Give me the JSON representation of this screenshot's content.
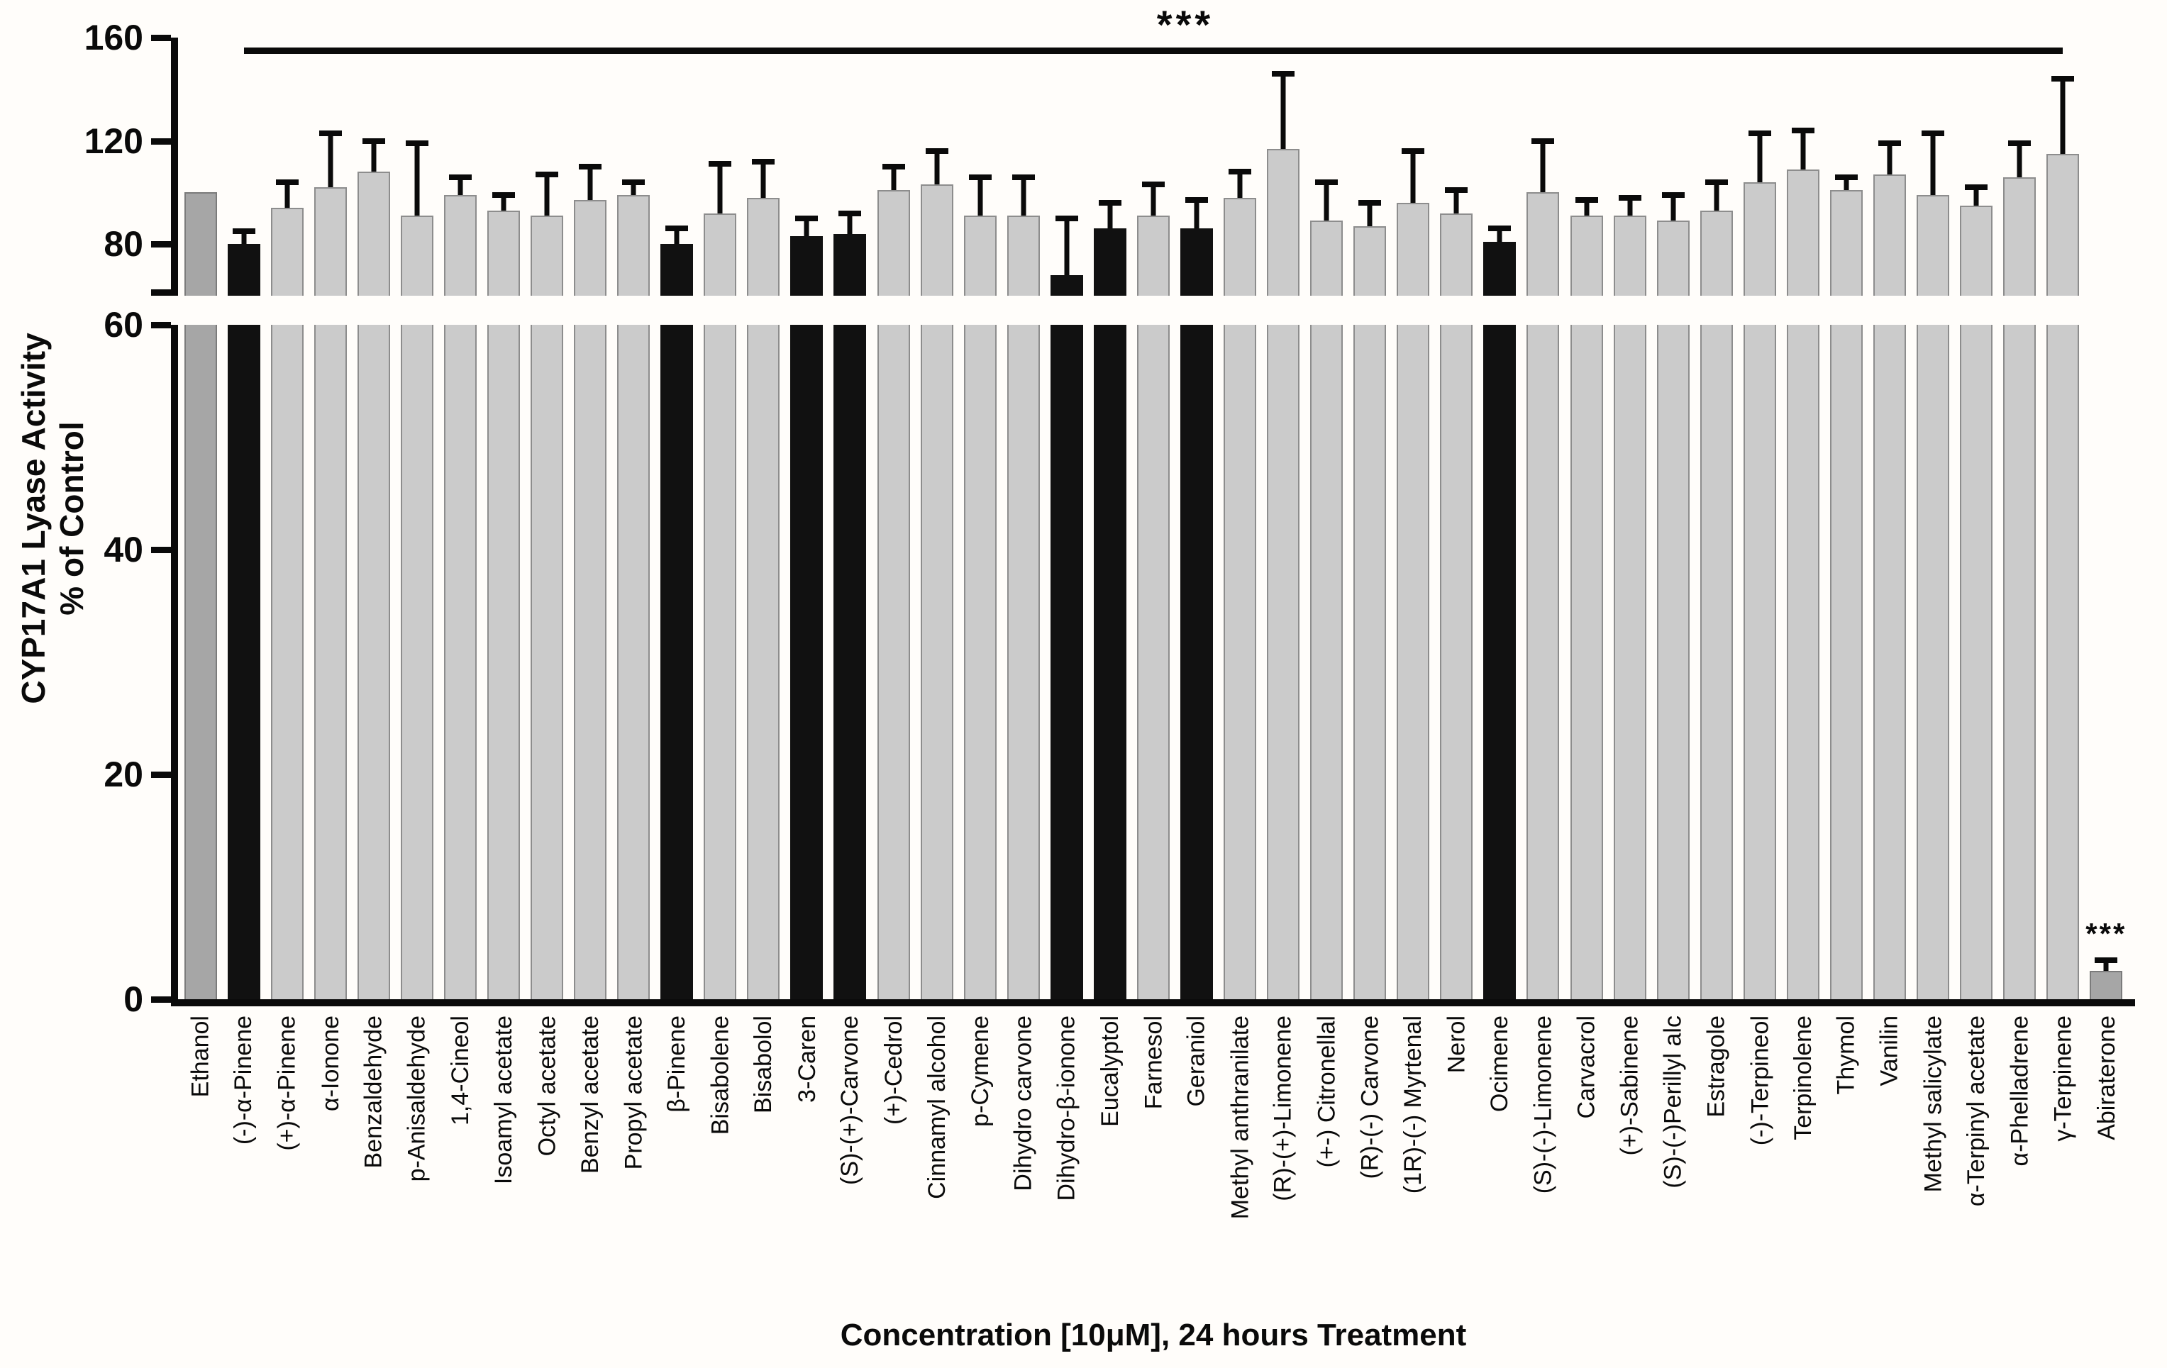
{
  "figure": {
    "y_axis_title_line1": "CYP17A1 Lyase Activity",
    "y_axis_title_line2": "% of Control",
    "x_axis_title": "Concentration [10μM], 24 hours Treatment",
    "significance_overall": "***"
  },
  "chart_data": {
    "type": "bar",
    "title": "",
    "xlabel": "Concentration [10μM], 24 hours Treatment",
    "ylabel": "CYP17A1 Lyase Activity % of Control",
    "grid": false,
    "legend": false,
    "y_axis": {
      "broken": true,
      "top_range": [
        60,
        160
      ],
      "bottom_range": [
        0,
        60
      ],
      "top_ticks": [
        160,
        120,
        80
      ],
      "bottom_ticks": [
        60,
        40,
        20,
        0
      ]
    },
    "colors": {
      "control_bar": "#a6a6a6",
      "default_bar": "#cbcbcb",
      "dark_bar": "#111111",
      "error_bar": "#0a0a0a",
      "axis": "#0a0a0a",
      "background": "#fffdfa"
    },
    "significance_bracket": {
      "label": "***",
      "from_category": "(-)-α-Pinene",
      "to_category": "γ-Terpinene",
      "y_value": 155
    },
    "bars": [
      {
        "label": "Ethanol",
        "value": 100,
        "error": 0,
        "tone": "control"
      },
      {
        "label": "(-)-α-Pinene",
        "value": 80,
        "error": 5,
        "tone": "dark"
      },
      {
        "label": "(+)-α-Pinene",
        "value": 94,
        "error": 10,
        "tone": "default"
      },
      {
        "label": "α-Ionone",
        "value": 102,
        "error": 21,
        "tone": "default"
      },
      {
        "label": "Benzaldehyde",
        "value": 108,
        "error": 12,
        "tone": "default"
      },
      {
        "label": "p-Anisaldehyde",
        "value": 91,
        "error": 28,
        "tone": "default"
      },
      {
        "label": "1,4-Cineol",
        "value": 99,
        "error": 7,
        "tone": "default"
      },
      {
        "label": "Isoamyl acetate",
        "value": 93,
        "error": 6,
        "tone": "default"
      },
      {
        "label": "Octyl acetate",
        "value": 91,
        "error": 16,
        "tone": "default"
      },
      {
        "label": "Benzyl acetate",
        "value": 97,
        "error": 13,
        "tone": "default"
      },
      {
        "label": "Propyl acetate",
        "value": 99,
        "error": 5,
        "tone": "default"
      },
      {
        "label": "β-Pinene",
        "value": 80,
        "error": 6,
        "tone": "dark"
      },
      {
        "label": "Bisabolene",
        "value": 92,
        "error": 19,
        "tone": "default"
      },
      {
        "label": "Bisabolol",
        "value": 98,
        "error": 14,
        "tone": "default"
      },
      {
        "label": "3-Caren",
        "value": 83,
        "error": 7,
        "tone": "dark"
      },
      {
        "label": "(S)-(+)-Carvone",
        "value": 84,
        "error": 8,
        "tone": "dark"
      },
      {
        "label": "(+)-Cedrol",
        "value": 101,
        "error": 9,
        "tone": "default"
      },
      {
        "label": "Cinnamyl alcohol",
        "value": 103,
        "error": 13,
        "tone": "default"
      },
      {
        "label": "p-Cymene",
        "value": 91,
        "error": 15,
        "tone": "default"
      },
      {
        "label": "Dihydro carvone",
        "value": 91,
        "error": 15,
        "tone": "default"
      },
      {
        "label": "Dihydro-β-ionone",
        "value": 68,
        "error": 22,
        "tone": "dark"
      },
      {
        "label": "Eucalyptol",
        "value": 86,
        "error": 10,
        "tone": "dark"
      },
      {
        "label": "Farnesol",
        "value": 91,
        "error": 12,
        "tone": "default"
      },
      {
        "label": "Geraniol",
        "value": 86,
        "error": 11,
        "tone": "dark"
      },
      {
        "label": "Methyl anthranilate",
        "value": 98,
        "error": 10,
        "tone": "default"
      },
      {
        "label": "(R)-(+)-Limonene",
        "value": 117,
        "error": 29,
        "tone": "default"
      },
      {
        "label": "(+-) Citronellal",
        "value": 89,
        "error": 15,
        "tone": "default"
      },
      {
        "label": "(R)-(-) Carvone",
        "value": 87,
        "error": 9,
        "tone": "default"
      },
      {
        "label": "(1R)-(-) Myrtenal",
        "value": 96,
        "error": 20,
        "tone": "default"
      },
      {
        "label": "Nerol",
        "value": 92,
        "error": 9,
        "tone": "default"
      },
      {
        "label": "Ocimene",
        "value": 81,
        "error": 5,
        "tone": "dark"
      },
      {
        "label": "(S)-(-)-Limonene",
        "value": 100,
        "error": 20,
        "tone": "default"
      },
      {
        "label": "Carvacrol",
        "value": 91,
        "error": 6,
        "tone": "default"
      },
      {
        "label": "(+)-Sabinene",
        "value": 91,
        "error": 7,
        "tone": "default"
      },
      {
        "label": "(S)-(-)Perillyl alc",
        "value": 89,
        "error": 10,
        "tone": "default"
      },
      {
        "label": "Estragole",
        "value": 93,
        "error": 11,
        "tone": "default"
      },
      {
        "label": "(-)-Terpineol",
        "value": 104,
        "error": 19,
        "tone": "default"
      },
      {
        "label": "Terpinolene",
        "value": 109,
        "error": 15,
        "tone": "default"
      },
      {
        "label": "Thymol",
        "value": 101,
        "error": 5,
        "tone": "default"
      },
      {
        "label": "Vanilin",
        "value": 107,
        "error": 12,
        "tone": "default"
      },
      {
        "label": "Methyl salicylate",
        "value": 99,
        "error": 24,
        "tone": "default"
      },
      {
        "label": "α-Terpinyl acetate",
        "value": 95,
        "error": 7,
        "tone": "default"
      },
      {
        "label": "α-Phelladrene",
        "value": 106,
        "error": 13,
        "tone": "default"
      },
      {
        "label": "γ-Terpinene",
        "value": 115,
        "error": 29,
        "tone": "default"
      },
      {
        "label": "Abiraterone",
        "value": 2.5,
        "error": 1,
        "tone": "control",
        "stars": "***"
      }
    ]
  }
}
